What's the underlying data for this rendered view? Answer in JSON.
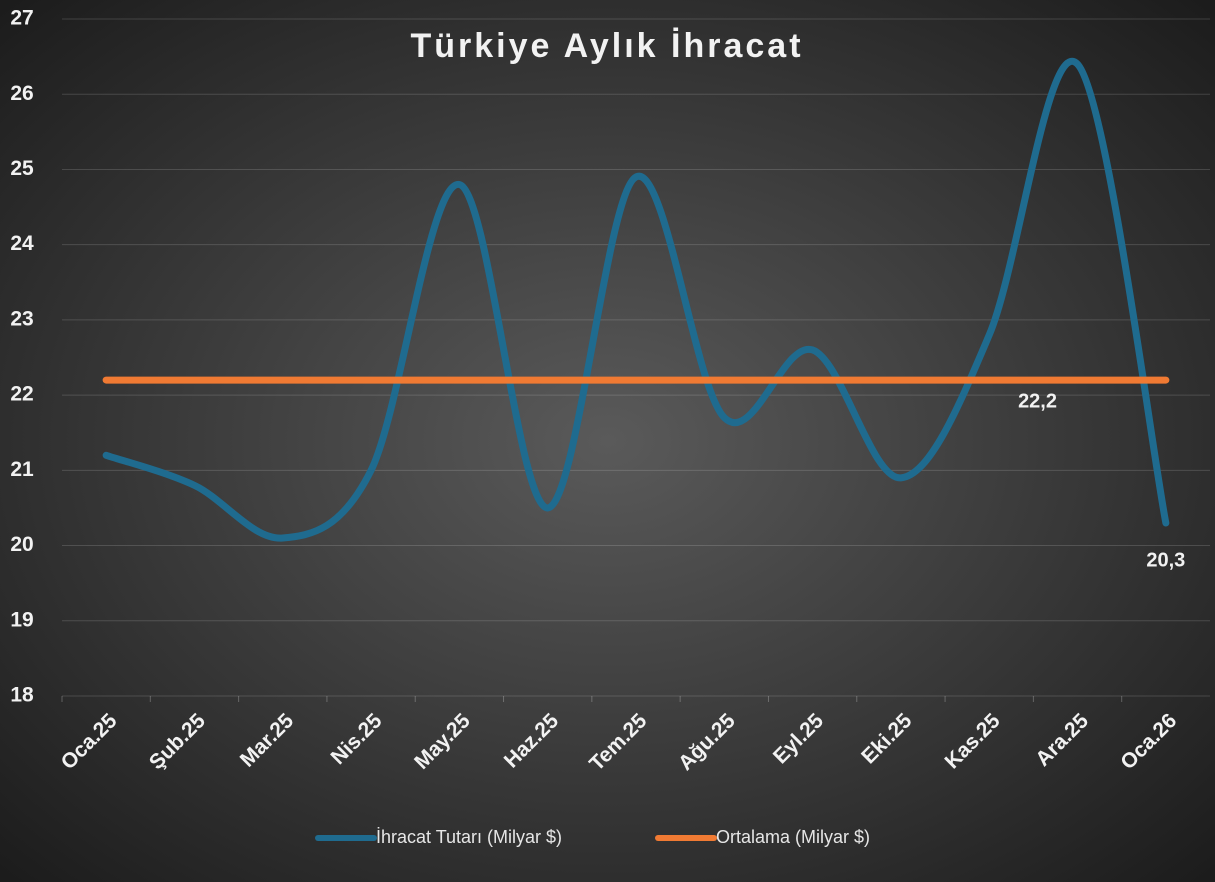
{
  "chart_data": {
    "type": "line",
    "title": "Türkiye Aylık İhracat",
    "categories": [
      "Oca.25",
      "Şub.25",
      "Mar.25",
      "Nis.25",
      "May.25",
      "Haz.25",
      "Tem.25",
      "Ağu.25",
      "Eyl.25",
      "Eki.25",
      "Kas.25",
      "Ara.25",
      "Oca.26"
    ],
    "series": [
      {
        "name": "İhracat Tutarı (Milyar $)",
        "color": "#1f6b8f",
        "values": [
          21.2,
          20.8,
          20.1,
          21.0,
          24.8,
          20.5,
          24.9,
          21.7,
          22.6,
          20.9,
          22.8,
          26.4,
          20.3
        ],
        "value_labels": [
          null,
          null,
          null,
          null,
          null,
          null,
          null,
          null,
          null,
          null,
          null,
          null,
          "20,3"
        ]
      },
      {
        "name": "Ortalama (Milyar $)",
        "color": "#f07a33",
        "values": [
          22.2,
          22.2,
          22.2,
          22.2,
          22.2,
          22.2,
          22.2,
          22.2,
          22.2,
          22.2,
          22.2,
          22.2,
          22.2
        ],
        "value_labels": [
          null,
          null,
          null,
          null,
          null,
          null,
          null,
          null,
          null,
          null,
          null,
          "22,2",
          null
        ]
      }
    ],
    "ylim": [
      18,
      27
    ],
    "yticks": [
      18,
      19,
      20,
      21,
      22,
      23,
      24,
      25,
      26,
      27
    ],
    "grid": true,
    "smooth": true,
    "legend": "bottom"
  }
}
